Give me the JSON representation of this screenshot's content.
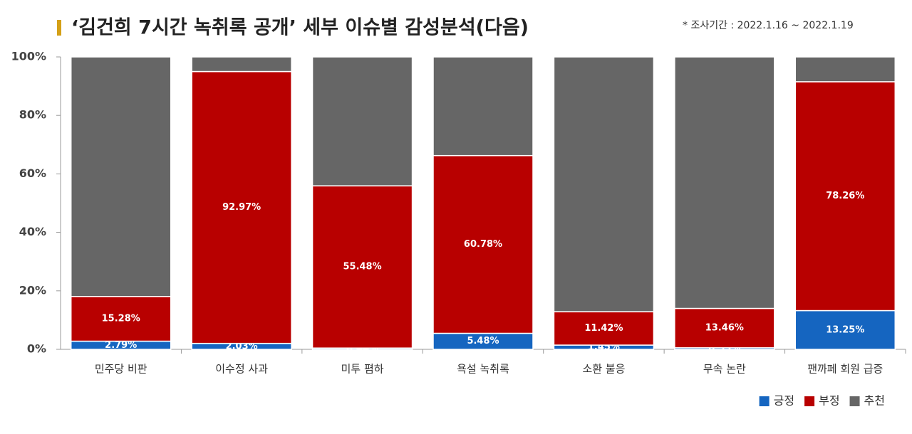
{
  "chart_data": {
    "type": "stacked_bar",
    "title": "‘김건희 7시간 녹취록 공개’ 세부 이슈별 감성분석(다음)",
    "subtitle": "* 조사기간 : 2022.1.16 ~ 2022.1.19",
    "categories": [
      "민주당 비판",
      "이수정 사과",
      "미투 폄하",
      "욕설 녹취록",
      "소환 불응",
      "무속 논란",
      "팬까페 회원 급증"
    ],
    "series": [
      {
        "name": "긍정",
        "color": "#1565c0",
        "values": [
          2.79,
          2.03,
          0.44,
          5.48,
          1.45,
          0.53,
          13.25
        ],
        "value_labels": [
          "2.79%",
          "2.03%",
          "0.44%",
          "5.48%",
          "1.45%",
          "0.53%",
          "13.25%"
        ]
      },
      {
        "name": "부정",
        "color": "#b80000",
        "values": [
          15.28,
          92.97,
          55.48,
          60.78,
          11.42,
          13.46,
          78.26
        ],
        "value_labels": [
          "15.28%",
          "92.97%",
          "55.48%",
          "60.78%",
          "11.42%",
          "13.46%",
          "78.26%"
        ]
      },
      {
        "name": "추천",
        "color": "#666666",
        "values": [
          81.93,
          5.0,
          44.08,
          33.74,
          87.13,
          86.01,
          8.49
        ]
      }
    ],
    "ylim": [
      0,
      100
    ],
    "yticks": [
      {
        "value": 0,
        "label": "0%"
      },
      {
        "value": 20,
        "label": "20%"
      },
      {
        "value": 40,
        "label": "40%"
      },
      {
        "value": 60,
        "label": "60%"
      },
      {
        "value": 80,
        "label": "80%"
      },
      {
        "value": 100,
        "label": "100%"
      }
    ],
    "grid": false,
    "legend": "bottom-right"
  }
}
